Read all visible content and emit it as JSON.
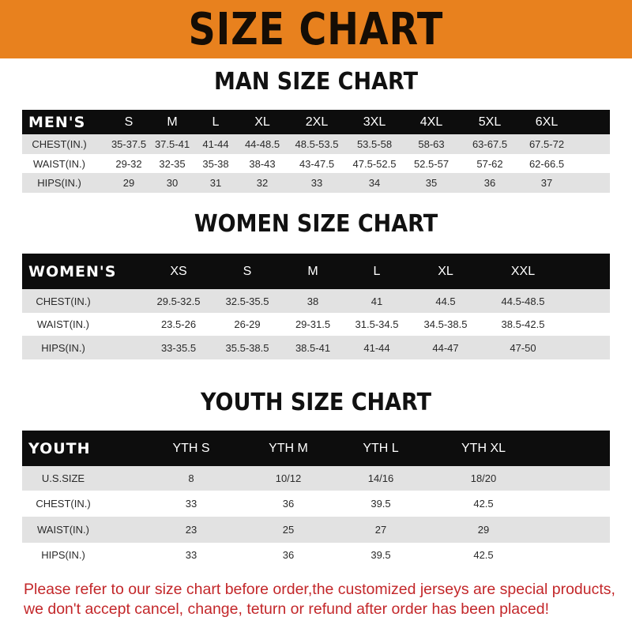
{
  "banner": {
    "title": "SIZE CHART",
    "color": "#e8811e"
  },
  "men": {
    "title": "MAN SIZE CHART",
    "header": [
      "MEN'S",
      "S",
      "M",
      "L",
      "XL",
      "2XL",
      "3XL",
      "4XL",
      "5XL",
      "6XL"
    ],
    "rows": [
      [
        "CHEST(IN.)",
        "35-37.5",
        "37.5-41",
        "41-44",
        "44-48.5",
        "48.5-53.5",
        "53.5-58",
        "58-63",
        "63-67.5",
        "67.5-72"
      ],
      [
        "WAIST(IN.)",
        "29-32",
        "32-35",
        "35-38",
        "38-43",
        "43-47.5",
        "47.5-52.5",
        "52.5-57",
        "57-62",
        "62-66.5"
      ],
      [
        "HIPS(IN.)",
        "29",
        "30",
        "31",
        "32",
        "33",
        "34",
        "35",
        "36",
        "37"
      ]
    ]
  },
  "women": {
    "title": "WOMEN SIZE CHART",
    "header": [
      "WOMEN'S",
      "XS",
      "S",
      "M",
      "L",
      "XL",
      "XXL"
    ],
    "rows": [
      [
        "CHEST(IN.)",
        "29.5-32.5",
        "32.5-35.5",
        "38",
        "41",
        "44.5",
        "44.5-48.5"
      ],
      [
        "WAIST(IN.)",
        "23.5-26",
        "26-29",
        "29-31.5",
        "31.5-34.5",
        "34.5-38.5",
        "38.5-42.5"
      ],
      [
        "HIPS(IN.)",
        "33-35.5",
        "35.5-38.5",
        "38.5-41",
        "41-44",
        "44-47",
        "47-50"
      ]
    ]
  },
  "youth": {
    "title": "YOUTH SIZE CHART",
    "header": [
      "YOUTH",
      "YTH S",
      "YTH M",
      "YTH L",
      "YTH XL"
    ],
    "rows": [
      [
        "U.S.SIZE",
        "8",
        "10/12",
        "14/16",
        "18/20"
      ],
      [
        "CHEST(IN.)",
        "33",
        "36",
        "39.5",
        "42.5"
      ],
      [
        "WAIST(IN.)",
        "23",
        "25",
        "27",
        "29"
      ],
      [
        "HIPS(IN.)",
        "33",
        "36",
        "39.5",
        "42.5"
      ]
    ]
  },
  "note": {
    "text": "Please refer to our size chart before order,the customized jerseys are special products, we don't accept cancel, change, teturn or refund after order has been placed!",
    "color": "#c3272a"
  }
}
